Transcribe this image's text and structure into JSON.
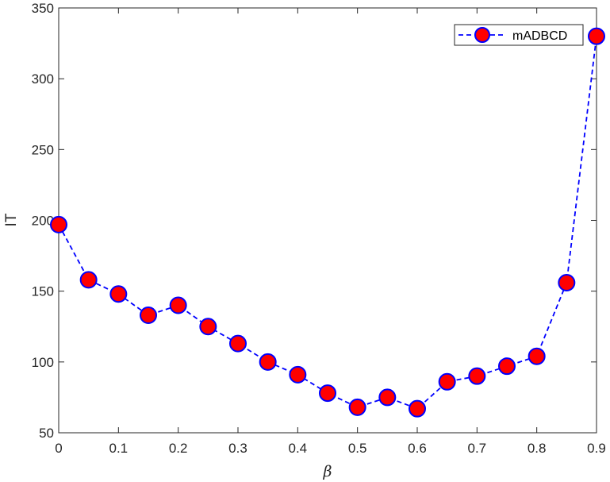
{
  "chart_data": {
    "type": "line",
    "xlabel": "β",
    "ylabel": "IT",
    "xlim": [
      0,
      0.9
    ],
    "ylim": [
      50,
      350
    ],
    "xticks": [
      0,
      0.1,
      0.2,
      0.3,
      0.4,
      0.5,
      0.6,
      0.7,
      0.8,
      0.9
    ],
    "xtick_labels": [
      "0",
      "0.1",
      "0.2",
      "0.3",
      "0.4",
      "0.5",
      "0.6",
      "0.7",
      "0.8",
      "0.9"
    ],
    "yticks": [
      50,
      100,
      150,
      200,
      250,
      300,
      350
    ],
    "ytick_labels": [
      "50",
      "100",
      "150",
      "200",
      "250",
      "300",
      "350"
    ],
    "grid": false,
    "legend_position": "top-right",
    "series": [
      {
        "name": "mADBCD",
        "line_style": "dashed",
        "line_color": "#0000FF",
        "marker": "circle",
        "marker_fill": "#FF0000",
        "marker_edge": "#0000FF",
        "x": [
          0,
          0.05,
          0.1,
          0.15,
          0.2,
          0.25,
          0.3,
          0.35,
          0.4,
          0.45,
          0.5,
          0.55,
          0.6,
          0.65,
          0.7,
          0.75,
          0.8,
          0.85,
          0.9
        ],
        "y": [
          197,
          158,
          148,
          133,
          140,
          125,
          113,
          100,
          91,
          78,
          68,
          75,
          67,
          86,
          90,
          97,
          104,
          156,
          330
        ]
      }
    ]
  }
}
